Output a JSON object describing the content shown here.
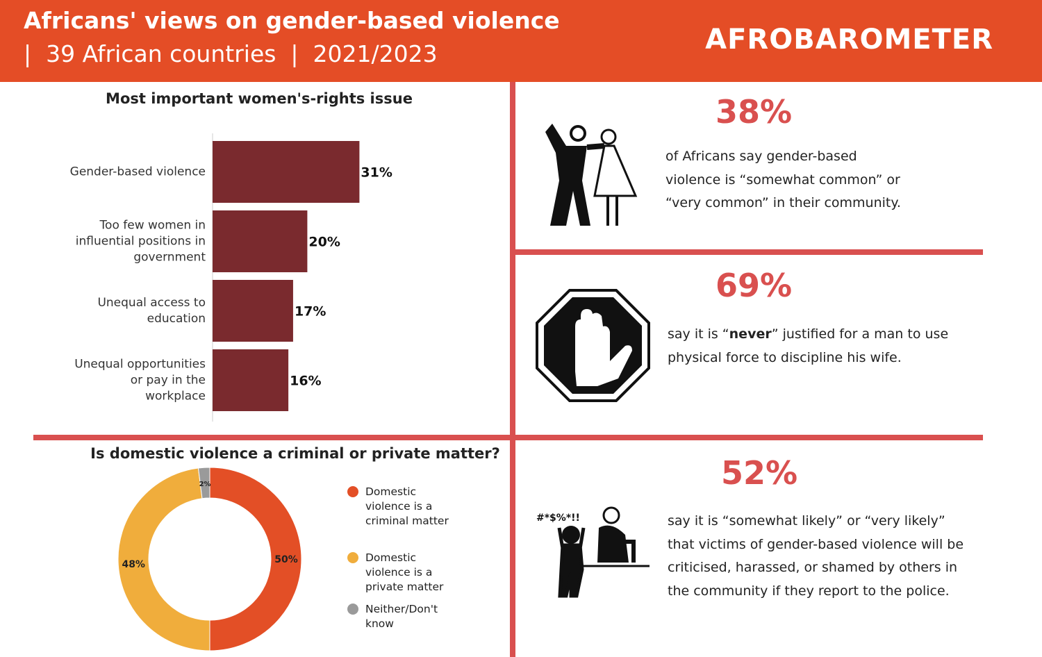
{
  "header": {
    "title": "Africans' views on gender-based violence",
    "subtitle": "|  39 African countries  |  2021/2023",
    "logo": "AFROBAROMETER"
  },
  "chart_data": [
    {
      "type": "bar",
      "orientation": "horizontal",
      "title": "Most important women's-rights issue",
      "categories": [
        "Gender-based violence",
        "Too few women in influential positions in government",
        "Unequal access to education",
        "Unequal opportunities or pay in the workplace"
      ],
      "values": [
        31,
        20,
        17,
        16
      ],
      "value_labels": [
        "31%",
        "20%",
        "17%",
        "16%"
      ],
      "color": "#7a2a2e"
    },
    {
      "type": "donut",
      "title": "Is domestic violence a criminal or private matter?",
      "categories": [
        "Domestic violence is a criminal matter",
        "Domestic violence is a private matter",
        "Neither/Don't know"
      ],
      "values": [
        50,
        48,
        2
      ],
      "value_labels": [
        "50%",
        "48%",
        "2%"
      ],
      "colors": [
        "#e34f26",
        "#f0ad3c",
        "#9a9a9a"
      ]
    }
  ],
  "stats": [
    {
      "value": "38%",
      "text": [
        "of Africans say gender-based violence is “somewhat common” or “very common” in their community."
      ]
    },
    {
      "value": "69%",
      "text": [
        "say it is “",
        "never",
        "” justified for a man to use physical force to discipline his wife."
      ]
    },
    {
      "value": "52%",
      "text": [
        "say it is “somewhat likely” or “very likely” that victims of gender-based violence will be criticised, harassed, or shamed by others in the community if they report to the police."
      ]
    }
  ]
}
